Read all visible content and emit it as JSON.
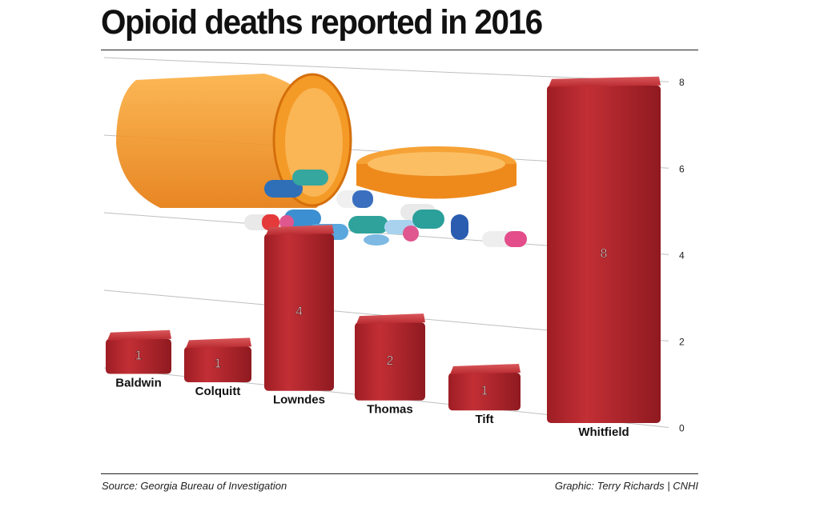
{
  "title": "Opioid deaths reported in 2016",
  "source": "Source: Georgia Bureau of Investigation",
  "credit": "Graphic: Terry Richards | CNHI",
  "colors": {
    "bar": "#b8262d",
    "bar_top": "#c93a3e",
    "grid": "#bfbfbf",
    "text": "#111111"
  },
  "chart_data": {
    "type": "bar",
    "title": "Opioid deaths reported in 2016",
    "xlabel": "",
    "ylabel": "",
    "categories": [
      "Baldwin",
      "Colquitt",
      "Lowndes",
      "Thomas",
      "Tift",
      "Whitfield"
    ],
    "values": [
      1,
      1,
      4,
      2,
      1,
      8
    ],
    "ylim": [
      0,
      8
    ],
    "yticks": [
      0,
      2,
      4,
      6,
      8
    ],
    "grid": true,
    "data_labels": true,
    "legend": "none",
    "perspective": "3d-oblique"
  }
}
